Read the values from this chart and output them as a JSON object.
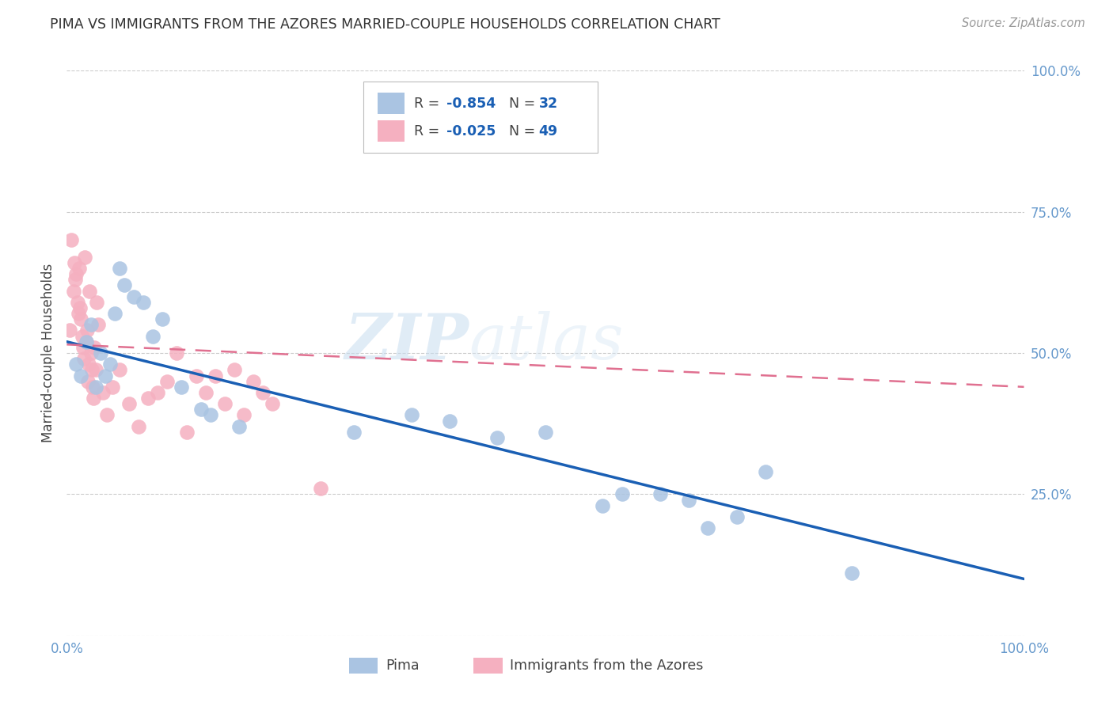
{
  "title": "PIMA VS IMMIGRANTS FROM THE AZORES MARRIED-COUPLE HOUSEHOLDS CORRELATION CHART",
  "source": "Source: ZipAtlas.com",
  "ylabel": "Married-couple Households",
  "legend_label1": "Pima",
  "legend_label2": "Immigrants from the Azores",
  "r1": -0.854,
  "n1": 32,
  "r2": -0.025,
  "n2": 49,
  "color_blue": "#aac4e2",
  "color_pink": "#f5b0c0",
  "line_blue": "#1a5fb4",
  "line_pink": "#e07090",
  "watermark_zip": "ZIP",
  "watermark_atlas": "atlas",
  "pima_x": [
    1.0,
    1.5,
    2.0,
    2.5,
    3.0,
    3.5,
    4.0,
    4.5,
    5.0,
    5.5,
    6.0,
    7.0,
    8.0,
    9.0,
    10.0,
    12.0,
    14.0,
    15.0,
    18.0,
    30.0,
    36.0,
    40.0,
    45.0,
    50.0,
    56.0,
    58.0,
    62.0,
    65.0,
    67.0,
    70.0,
    73.0,
    82.0
  ],
  "pima_y": [
    48.0,
    46.0,
    52.0,
    55.0,
    44.0,
    50.0,
    46.0,
    48.0,
    57.0,
    65.0,
    62.0,
    60.0,
    59.0,
    53.0,
    56.0,
    44.0,
    40.0,
    39.0,
    37.0,
    36.0,
    39.0,
    38.0,
    35.0,
    36.0,
    23.0,
    25.0,
    25.0,
    24.0,
    19.0,
    21.0,
    29.0,
    11.0
  ],
  "azores_x": [
    0.3,
    0.5,
    0.7,
    0.8,
    0.9,
    1.0,
    1.1,
    1.2,
    1.3,
    1.4,
    1.5,
    1.6,
    1.7,
    1.8,
    1.9,
    2.0,
    2.1,
    2.2,
    2.3,
    2.4,
    2.5,
    2.6,
    2.7,
    2.8,
    2.9,
    3.0,
    3.1,
    3.3,
    3.8,
    4.2,
    4.8,
    5.5,
    6.5,
    7.5,
    8.5,
    9.5,
    10.5,
    11.5,
    12.5,
    13.5,
    14.5,
    15.5,
    16.5,
    17.5,
    18.5,
    19.5,
    20.5,
    21.5,
    26.5
  ],
  "azores_y": [
    54.0,
    70.0,
    61.0,
    66.0,
    63.0,
    64.0,
    59.0,
    57.0,
    65.0,
    58.0,
    56.0,
    53.0,
    51.0,
    49.0,
    67.0,
    52.0,
    54.0,
    45.0,
    48.0,
    61.0,
    50.0,
    47.0,
    44.0,
    42.0,
    51.0,
    47.0,
    59.0,
    55.0,
    43.0,
    39.0,
    44.0,
    47.0,
    41.0,
    37.0,
    42.0,
    43.0,
    45.0,
    50.0,
    36.0,
    46.0,
    43.0,
    46.0,
    41.0,
    47.0,
    39.0,
    45.0,
    43.0,
    41.0,
    26.0
  ],
  "xlim": [
    0,
    100
  ],
  "ylim": [
    0,
    100
  ],
  "blue_line_x0": 0,
  "blue_line_y0": 52.0,
  "blue_line_x1": 100,
  "blue_line_y1": 10.0,
  "pink_line_x0": 0,
  "pink_line_y0": 51.5,
  "pink_line_x1": 100,
  "pink_line_y1": 44.0
}
